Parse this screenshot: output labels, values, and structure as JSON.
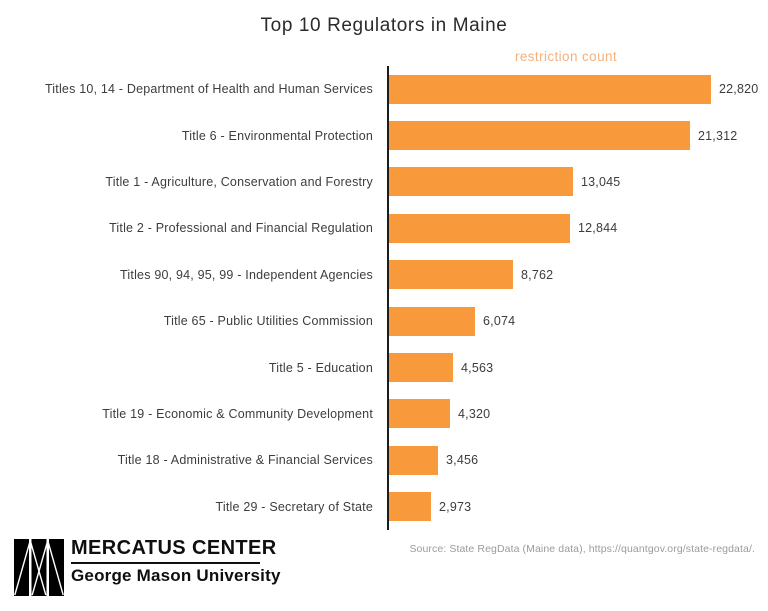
{
  "title": "Top 10 Regulators in Maine",
  "chart_data": {
    "type": "bar",
    "orientation": "horizontal",
    "title": "Top 10 Regulators in Maine",
    "value_axis_label": "restriction count",
    "categories": [
      "Titles 10, 14 - Department of Health and Human Services",
      "Title 6 - Environmental Protection",
      "Title 1 - Agriculture, Conservation and Forestry",
      "Title 2 - Professional and Financial Regulation",
      "Titles 90, 94, 95, 99 - Independent Agencies",
      "Title 65 - Public Utilities Commission",
      "Title 5 - Education",
      "Title 19 - Economic & Community Development",
      "Title 18 - Administrative & Financial Services",
      "Title 29 - Secretary of State"
    ],
    "values": [
      22820,
      21312,
      13045,
      12844,
      8762,
      6074,
      4563,
      4320,
      3456,
      2973
    ],
    "value_labels": [
      "22,820",
      "21,312",
      "13,045",
      "12,844",
      "8,762",
      "6,074",
      "4,563",
      "4,320",
      "3,456",
      "2,973"
    ],
    "xlim": [
      0,
      23500
    ],
    "grid": false,
    "legend": false
  },
  "colors": {
    "bar": "#f89a3c",
    "value_axis_label": "#f6b07a",
    "text": "#3d3d3d",
    "title": "#2b2b2b",
    "axis_line": "#1c1c1c",
    "source": "#9b9ba0",
    "logo": "#000000"
  },
  "footer": {
    "logo_title": "MERCATUS CENTER",
    "logo_subtitle": "George Mason University",
    "source": "Source: State RegData (Maine data), https://quantgov.org/state-regdata/."
  }
}
